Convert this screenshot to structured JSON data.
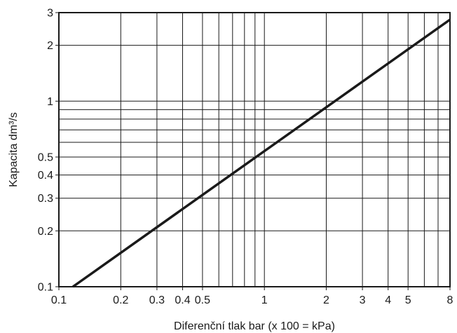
{
  "chart_data": {
    "type": "line",
    "title": "",
    "xlabel": "Diferenční tlak bar (x 100 = kPa)",
    "ylabel": "Kapacita dm³/s",
    "x_scale": "log",
    "y_scale": "log",
    "xlim": [
      0.1,
      8
    ],
    "ylim": [
      0.1,
      3
    ],
    "grid": true,
    "legend": "none",
    "x_gridlines": [
      0.2,
      0.3,
      0.4,
      0.5,
      0.6,
      0.7,
      0.8,
      0.9,
      1,
      2,
      3,
      4,
      5,
      6,
      7
    ],
    "y_gridlines": [
      0.2,
      0.3,
      0.4,
      0.5,
      0.6,
      0.7,
      0.8,
      0.9,
      1,
      2
    ],
    "x_ticks": [
      {
        "value": 0.1,
        "label": "0.1"
      },
      {
        "value": 0.2,
        "label": "0.2"
      },
      {
        "value": 0.3,
        "label": "0.3"
      },
      {
        "value": 0.4,
        "label": "0.4"
      },
      {
        "value": 0.5,
        "label": "0.5"
      },
      {
        "value": 1,
        "label": "1"
      },
      {
        "value": 2,
        "label": "2"
      },
      {
        "value": 3,
        "label": "3"
      },
      {
        "value": 4,
        "label": "4"
      },
      {
        "value": 5,
        "label": "5"
      },
      {
        "value": 8,
        "label": "8"
      }
    ],
    "y_ticks": [
      {
        "value": 0.1,
        "label": "0.1"
      },
      {
        "value": 0.2,
        "label": "0.2"
      },
      {
        "value": 0.3,
        "label": "0.3"
      },
      {
        "value": 0.4,
        "label": "0.4"
      },
      {
        "value": 0.5,
        "label": "0.5"
      },
      {
        "value": 1,
        "label": "1"
      },
      {
        "value": 2,
        "label": "2"
      },
      {
        "value": 3,
        "label": "3"
      }
    ],
    "series": [
      {
        "x": [
          0.117,
          8
        ],
        "y": [
          0.1,
          2.75
        ]
      }
    ],
    "colors": {
      "line": "#1a1a1a",
      "grid": "#1a1a1a",
      "background": "#ffffff"
    }
  }
}
